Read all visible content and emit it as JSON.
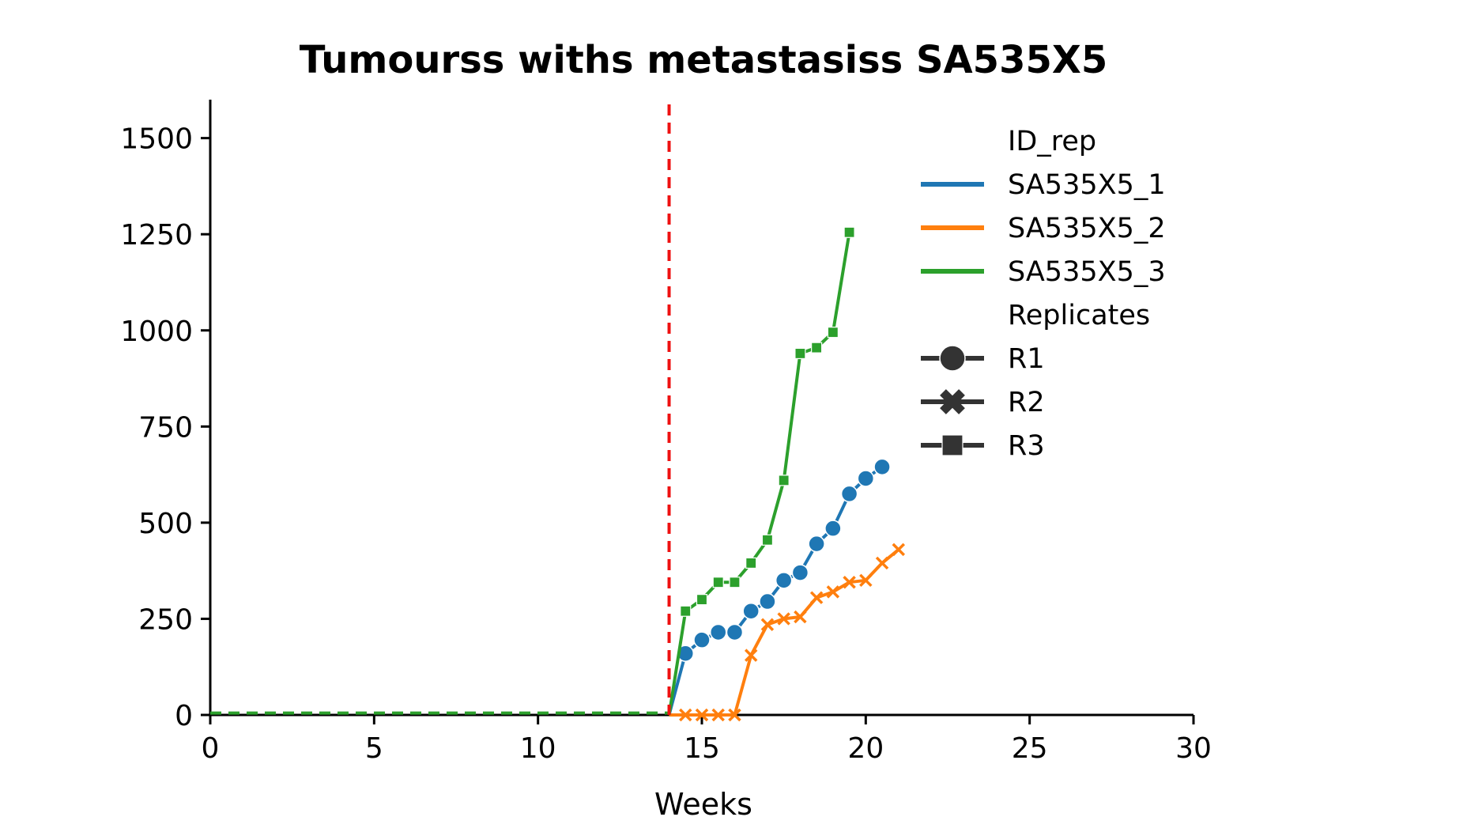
{
  "chart_data": {
    "type": "line",
    "title": "Tumourss withs metastasiss SA535X5",
    "xlabel": "Weeks",
    "ylabel": "",
    "xlim": [
      0,
      30
    ],
    "ylim": [
      0,
      1600
    ],
    "xticks": [
      0,
      5,
      10,
      15,
      20,
      25,
      30
    ],
    "yticks": [
      0,
      250,
      500,
      750,
      1000,
      1250,
      1500
    ],
    "grid": false,
    "legend_position": "upper-right",
    "legend": {
      "hue_title": "ID_rep",
      "style_title": "Replicates",
      "style_entries": [
        {
          "label": "R1",
          "marker": "circle"
        },
        {
          "label": "R2",
          "marker": "x"
        },
        {
          "label": "R3",
          "marker": "square"
        }
      ]
    },
    "reference_line": {
      "x": 14,
      "color": "#ee1111",
      "style": "dashed"
    },
    "pre_line": {
      "x": [
        0,
        14
      ],
      "y": [
        5,
        5
      ],
      "color": "#2ca02c",
      "style": "dashed"
    },
    "series": [
      {
        "name": "SA535X5_1",
        "color": "#1f77b4",
        "marker": "circle",
        "points": [
          [
            14,
            0
          ],
          [
            14.5,
            160
          ],
          [
            15,
            195
          ],
          [
            15.5,
            215
          ],
          [
            16,
            215
          ],
          [
            16.5,
            270
          ],
          [
            17,
            295
          ],
          [
            17.5,
            350
          ],
          [
            18,
            370
          ],
          [
            18.5,
            445
          ],
          [
            19,
            485
          ],
          [
            19.5,
            575
          ],
          [
            20,
            615
          ],
          [
            20.5,
            645
          ]
        ]
      },
      {
        "name": "SA535X5_2",
        "color": "#ff7f0e",
        "marker": "x",
        "points": [
          [
            14,
            0
          ],
          [
            14.5,
            0
          ],
          [
            15,
            0
          ],
          [
            15.5,
            0
          ],
          [
            16,
            0
          ],
          [
            16.5,
            155
          ],
          [
            17,
            235
          ],
          [
            17.5,
            250
          ],
          [
            18,
            255
          ],
          [
            18.5,
            305
          ],
          [
            19,
            320
          ],
          [
            19.5,
            345
          ],
          [
            20,
            350
          ],
          [
            20.5,
            395
          ],
          [
            21,
            430
          ]
        ]
      },
      {
        "name": "SA535X5_3",
        "color": "#2ca02c",
        "marker": "square",
        "points": [
          [
            14,
            0
          ],
          [
            14.5,
            270
          ],
          [
            15,
            300
          ],
          [
            15.5,
            345
          ],
          [
            16,
            345
          ],
          [
            16.5,
            395
          ],
          [
            17,
            455
          ],
          [
            17.5,
            610
          ],
          [
            18,
            940
          ],
          [
            18.5,
            955
          ],
          [
            19,
            995
          ],
          [
            19.5,
            1255
          ]
        ]
      }
    ]
  }
}
